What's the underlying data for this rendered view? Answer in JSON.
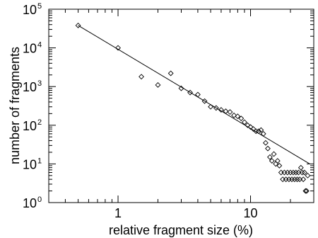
{
  "chart_data": {
    "type": "scatter",
    "title": "",
    "xlabel": "relative fragment size (%)",
    "ylabel": "number of fragments",
    "x_scale": "log",
    "y_scale": "log",
    "xlim": [
      0.3,
      30
    ],
    "ylim": [
      1,
      100000
    ],
    "x_ticks": [
      {
        "value": 1,
        "label": "1"
      },
      {
        "value": 10,
        "label": "10"
      }
    ],
    "y_ticks": [
      {
        "value": 1,
        "base": "10",
        "exp": "0"
      },
      {
        "value": 10,
        "base": "10",
        "exp": "1"
      },
      {
        "value": 100,
        "base": "10",
        "exp": "2"
      },
      {
        "value": 1000,
        "base": "10",
        "exp": "3"
      },
      {
        "value": 10000,
        "base": "10",
        "exp": "4"
      },
      {
        "value": 100000,
        "base": "10",
        "exp": "5"
      }
    ],
    "grid": false,
    "legend": "none",
    "marker": "diamond",
    "colors": {
      "marker": "#000000",
      "line": "#000000",
      "axes": "#000000"
    },
    "fit_line": {
      "x": [
        0.5,
        28
      ],
      "y": [
        38000,
        10
      ]
    },
    "series": [
      {
        "x": [
          0.5,
          1.0,
          1.5,
          2.0,
          2.5,
          3.0,
          3.5,
          4.0,
          4.5,
          5.0,
          5.5,
          6.0,
          6.5,
          7.0,
          7.5,
          8.0,
          8.5,
          9.0,
          9.5,
          10.0,
          10.5,
          11.0,
          11.5,
          12.0,
          12.5,
          13.0,
          13.5,
          14.0,
          14.5,
          15.0,
          15.5,
          16.0,
          16.5,
          17.0,
          17.5,
          18.0,
          18.5,
          19.0,
          19.5,
          20.0,
          20.5,
          21.0,
          21.5,
          22.0,
          22.5,
          23.0,
          23.5,
          24.0,
          24.5,
          25.0,
          25.5,
          26.0,
          26.5,
          27.0
        ],
        "y": [
          38000,
          10000,
          1800,
          1100,
          2200,
          900,
          700,
          620,
          420,
          300,
          280,
          250,
          230,
          220,
          180,
          170,
          150,
          120,
          100,
          90,
          80,
          70,
          70,
          75,
          60,
          35,
          25,
          15,
          12,
          18,
          10,
          12,
          9,
          6,
          4,
          6,
          4,
          6,
          4,
          6,
          4,
          6,
          4,
          6,
          4,
          6,
          4,
          8,
          6,
          4,
          6,
          2,
          2,
          5
        ]
      }
    ]
  }
}
